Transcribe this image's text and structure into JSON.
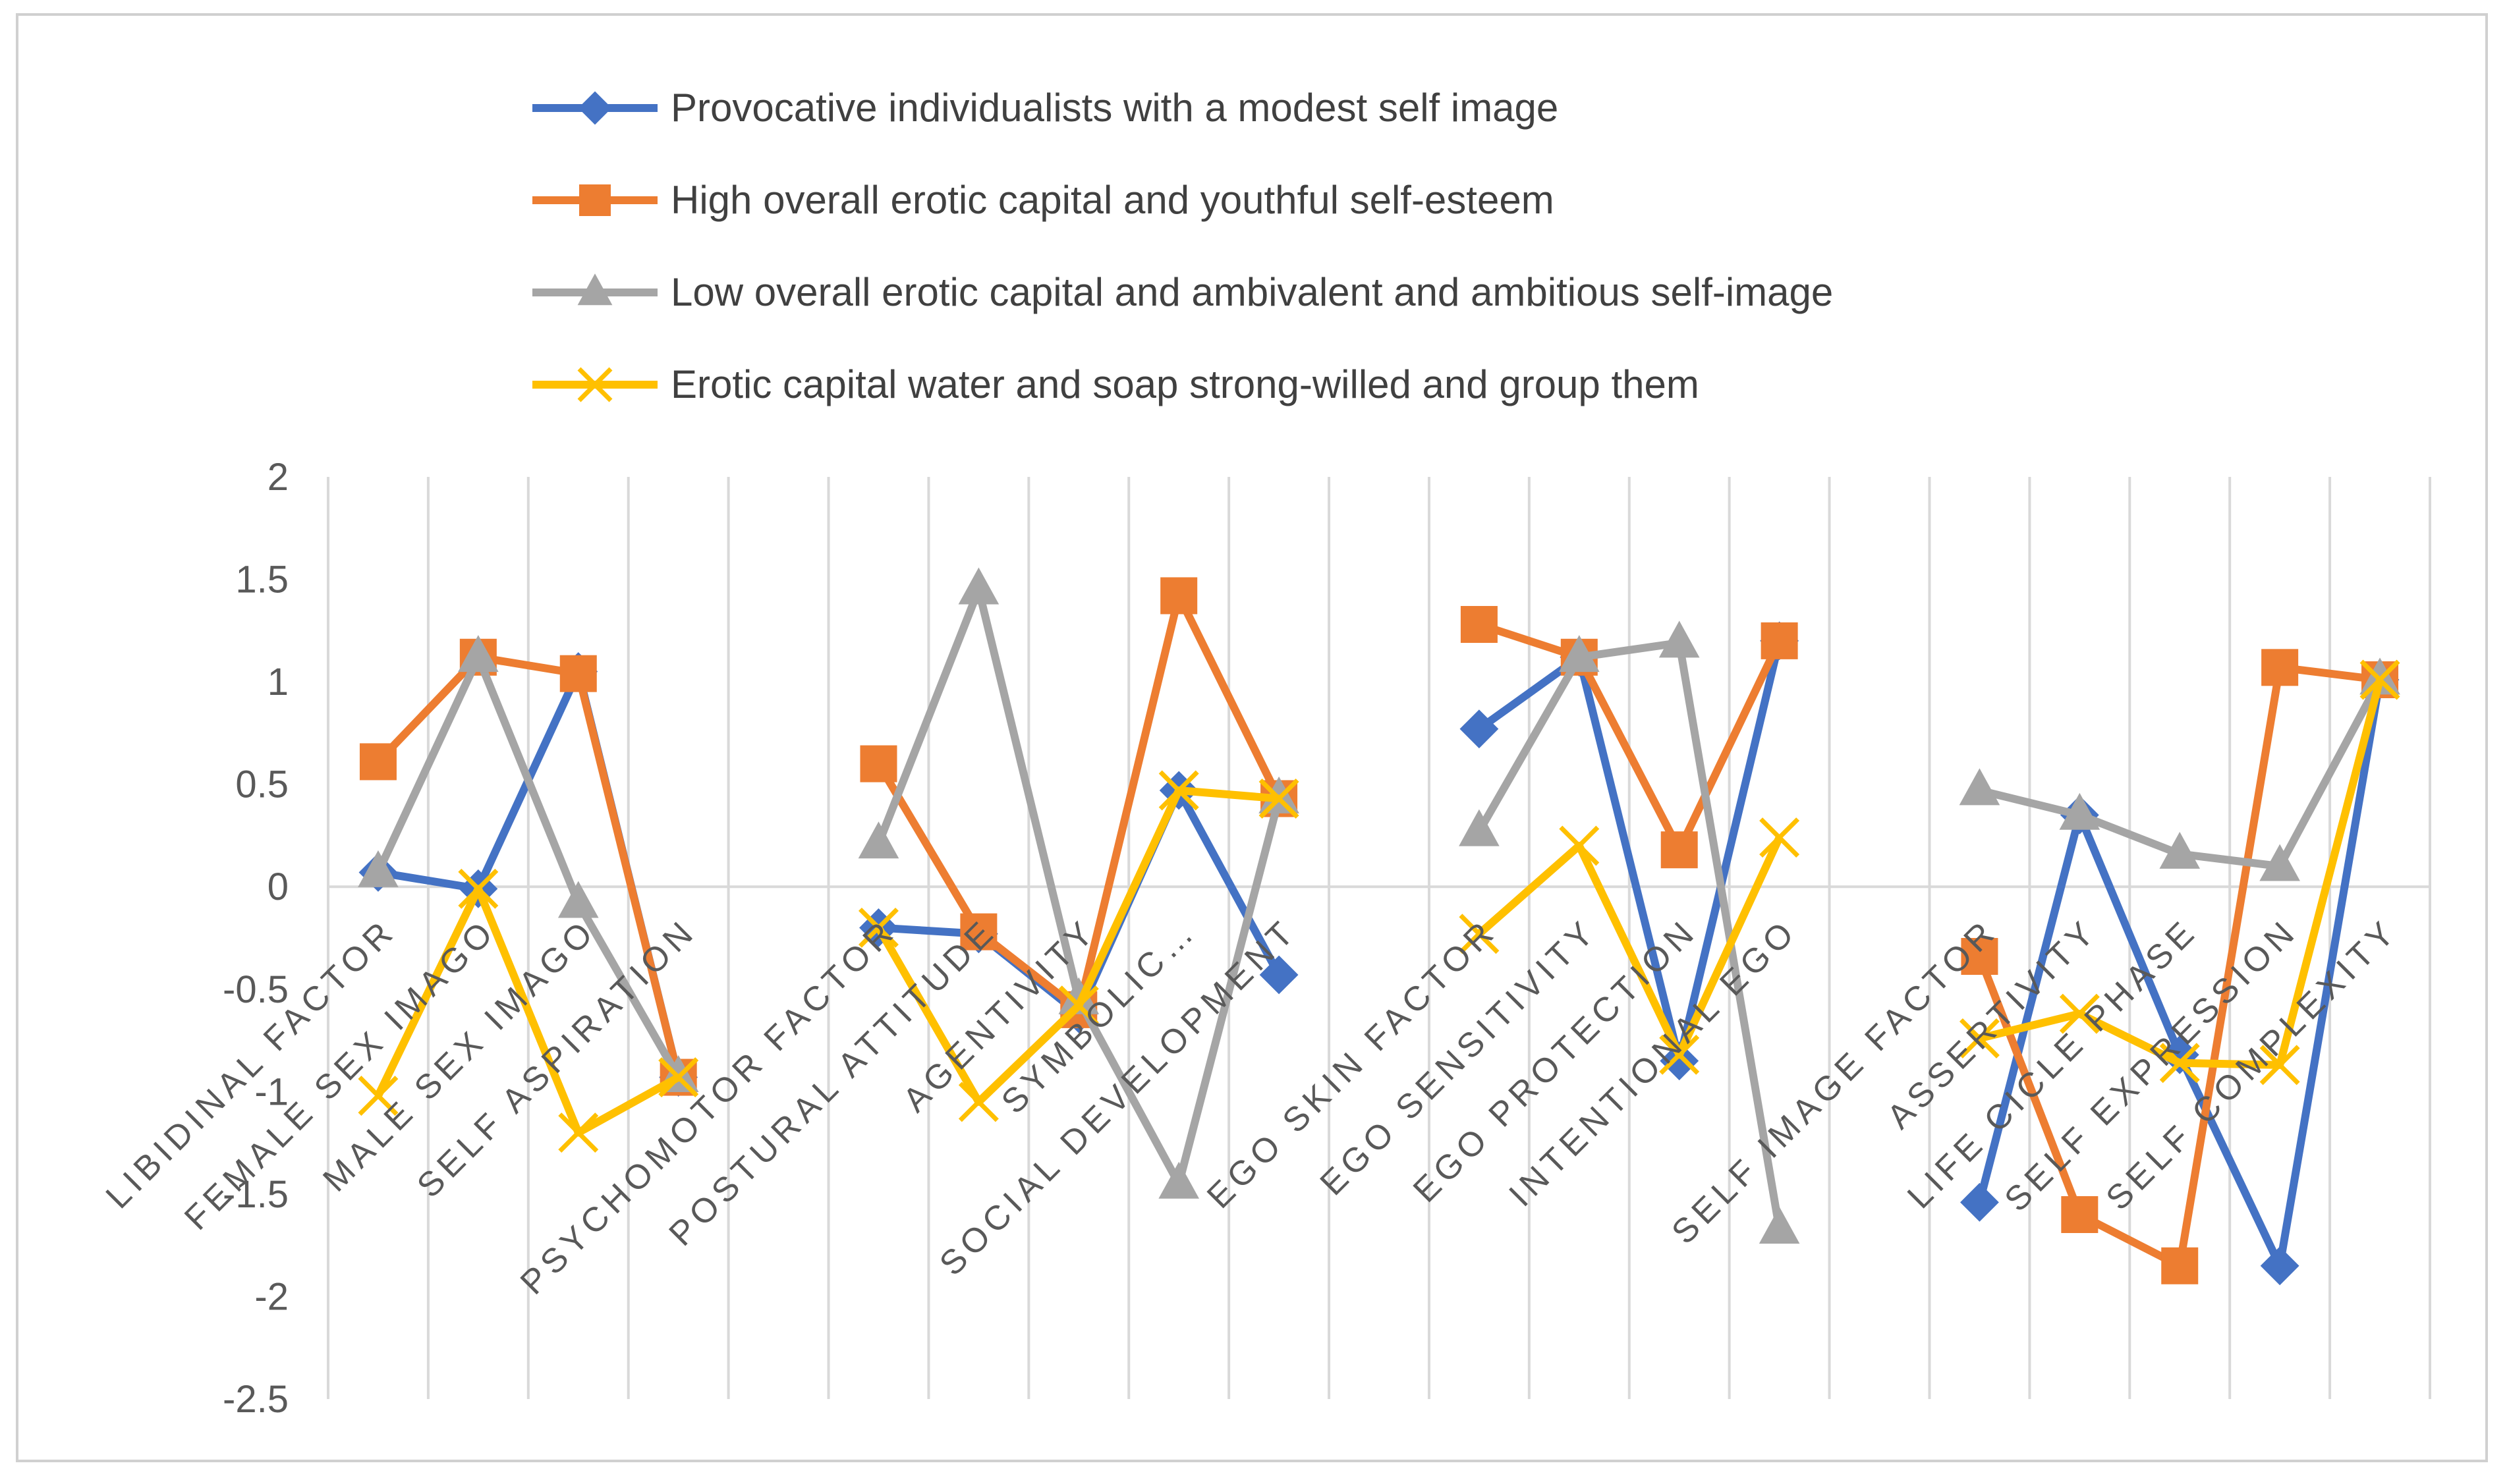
{
  "chart_data": {
    "type": "line",
    "title": "",
    "xlabel": "",
    "ylabel": "",
    "ylim": [
      -2.5,
      2
    ],
    "yticks": [
      2,
      1.5,
      1,
      0.5,
      0,
      -0.5,
      -1,
      -1.5,
      -2,
      -2.5
    ],
    "ytick_labels": [
      "2",
      "1.5",
      "1",
      "0.5",
      "0",
      "-0.5",
      "-1",
      "-1.5",
      "-2",
      "-2.5"
    ],
    "grid": "vertical",
    "legend_position": "top",
    "categories": [
      "LIBIDINAL FACTOR",
      "FEMALE SEX IMAGO",
      "MALE SEX IMAGO",
      "SELF ASPIRATION",
      "",
      "PSYCHOMOTOR FACTOR",
      "POSTURAL ATTITUDE",
      "AGENTIVITY",
      "SYMBOLIC…",
      "SOCIAL DEVELOPMENT",
      "",
      "EGO SKIN FACTOR",
      "EGO SENSITIVITY",
      "EGO PROTECTION",
      "INTENTIONAL EGO",
      "",
      "SELF IMAGE FACTOR",
      "ASSERTIVITY",
      "LIFE CICLE PHASE",
      "SELF EXPRESSION",
      "SELF COMPLEXITY"
    ],
    "series": [
      {
        "name": "Provocative individualists with a modest self image",
        "color": "#4472C4",
        "marker": "diamond",
        "values": [
          0.07,
          -0.01,
          1.05,
          -0.93,
          null,
          -0.2,
          -0.23,
          -0.62,
          0.47,
          -0.43,
          null,
          0.77,
          1.12,
          -0.85,
          1.2,
          null,
          -1.54,
          0.35,
          -0.82,
          -1.85,
          1.01
        ]
      },
      {
        "name": "High overall erotic capital and youthful self-esteem",
        "color": "#ED7D31",
        "marker": "square",
        "values": [
          0.61,
          1.12,
          1.04,
          -0.93,
          null,
          0.6,
          -0.22,
          -0.6,
          1.42,
          0.43,
          null,
          1.28,
          1.12,
          0.18,
          1.2,
          null,
          -0.34,
          -1.6,
          -1.85,
          1.07,
          1.01
        ]
      },
      {
        "name": "Low overall erotic capital and ambivalent and ambitious self-image",
        "color": "#A5A5A5",
        "marker": "triangle",
        "values": [
          0.07,
          1.12,
          -0.08,
          -0.93,
          null,
          0.21,
          1.45,
          -0.55,
          -1.45,
          0.43,
          null,
          0.27,
          1.12,
          1.19,
          -1.67,
          null,
          0.47,
          0.35,
          0.16,
          0.1,
          1.01
        ]
      },
      {
        "name": "Erotic capital water and soap strong-willed and group them",
        "color": "#FFC000",
        "marker": "x",
        "values": [
          -1.02,
          -0.01,
          -1.2,
          -0.93,
          null,
          -0.2,
          -1.05,
          -0.58,
          0.47,
          0.43,
          null,
          -0.23,
          0.2,
          -0.82,
          0.24,
          null,
          -0.74,
          -0.62,
          -0.86,
          -0.87,
          1.01
        ]
      }
    ]
  }
}
